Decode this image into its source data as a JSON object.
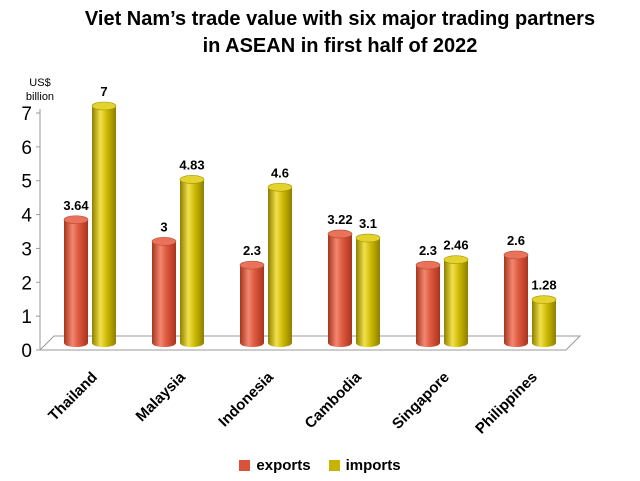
{
  "chart_data": {
    "type": "bar",
    "title": [
      "Viet Nam’s trade value with six major trading partners",
      "in ASEAN in first half of 2022"
    ],
    "ylabel": [
      "US$",
      "billion"
    ],
    "ylim": [
      0,
      7
    ],
    "y_ticks": [
      "0",
      "1",
      "2",
      "3",
      "4",
      "5",
      "6",
      "7"
    ],
    "categories": [
      "Thailand",
      "Malaysia",
      "Indonesia",
      "Cambodia",
      "Singapore",
      "Philippines"
    ],
    "series": [
      {
        "name": "exports",
        "color": "#D9533A",
        "values": [
          3.64,
          3,
          2.3,
          3.22,
          2.3,
          2.6
        ],
        "labels": [
          "3.64",
          "3",
          "2.3",
          "3.22",
          "2.3",
          "2.6"
        ]
      },
      {
        "name": "imports",
        "color": "#C8B400",
        "values": [
          7,
          4.83,
          4.6,
          3.1,
          2.46,
          1.28
        ],
        "labels": [
          "7",
          "4.83",
          "4.6",
          "3.1",
          "2.46",
          "1.28"
        ]
      }
    ],
    "legend_position": "bottom",
    "grid": false
  }
}
